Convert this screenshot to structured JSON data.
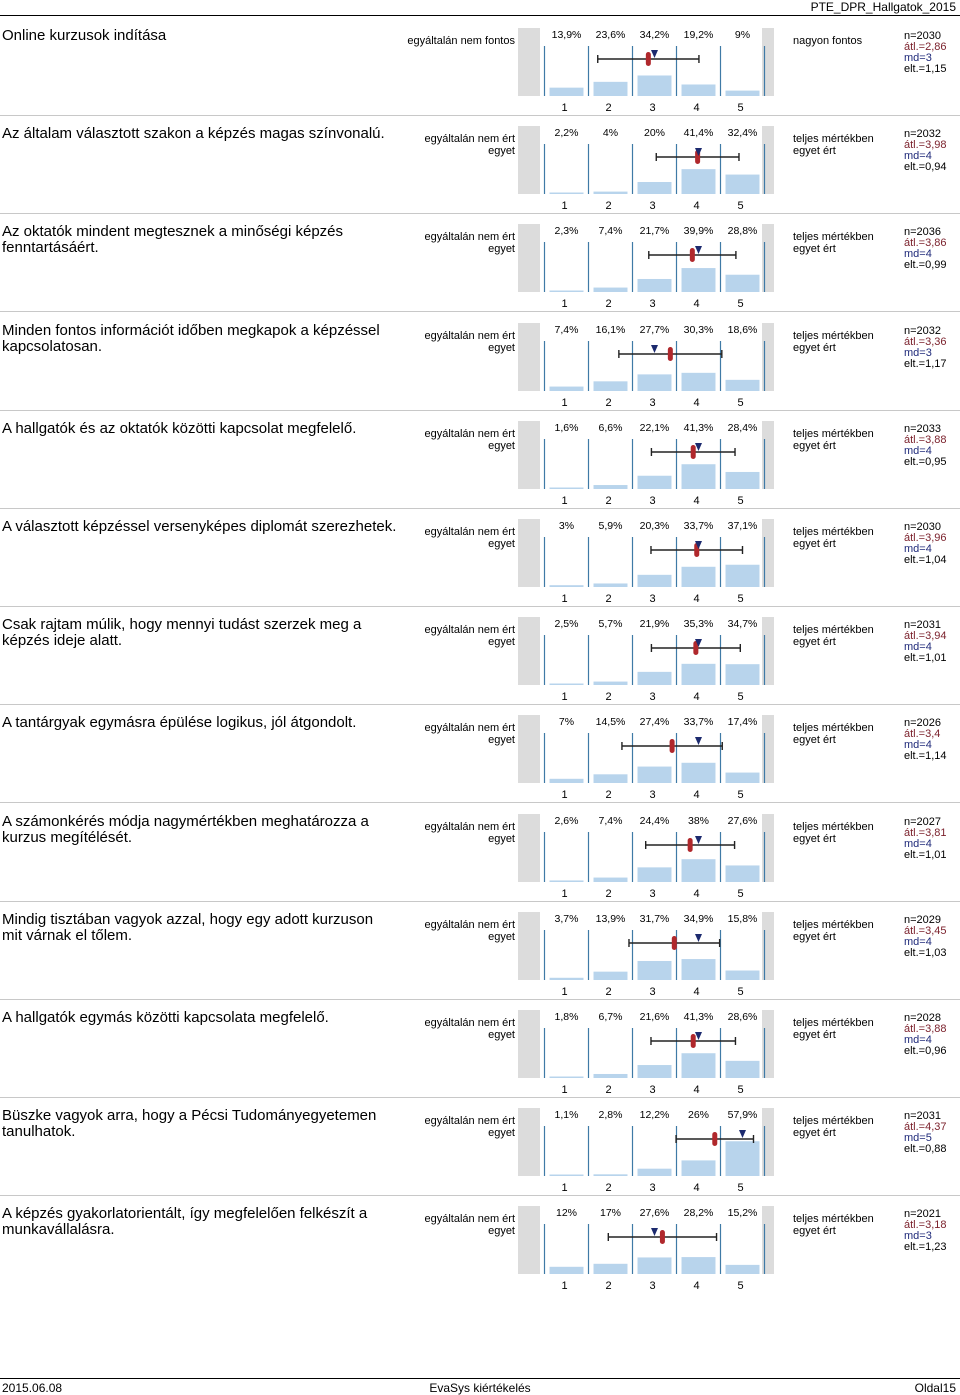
{
  "header": {
    "title": "PTE_DPR_Hallgatok_2015"
  },
  "footer": {
    "date": "2015.06.08",
    "center": "EvaSys kiértékelés",
    "page": "Oldal15"
  },
  "scale_labels": [
    "1",
    "2",
    "3",
    "4",
    "5"
  ],
  "colors": {
    "bar": "#b8d4ec",
    "mean": "#b0282c",
    "median": "#1c2a6e",
    "frame": "#dcdcdc",
    "gridline": "#3f7aa6"
  },
  "chart_data": [
    {
      "type": "bar",
      "question": "Online kurzusok indítása",
      "left_label": "egyáltalán nem fontos",
      "right_label": "nagyon fontos",
      "categories": [
        "1",
        "2",
        "3",
        "4",
        "5"
      ],
      "values": [
        13.9,
        23.6,
        34.2,
        19.2,
        9.0
      ],
      "value_labels": [
        "13,9%",
        "23,6%",
        "34,2%",
        "19,2%",
        "9%"
      ],
      "n": "n=2030",
      "mean": 2.86,
      "mean_label": "átl.=2,86",
      "median": 3,
      "median_label": "md=3",
      "sd": 1.15,
      "sd_label": "elt.=1,15"
    },
    {
      "type": "bar",
      "question": "Az általam választott szakon a képzés magas színvonalú.",
      "left_label": "egyáltalán nem ért egyet",
      "right_label": "teljes mértékben egyet ért",
      "categories": [
        "1",
        "2",
        "3",
        "4",
        "5"
      ],
      "values": [
        2.2,
        4.0,
        20.0,
        41.4,
        32.4
      ],
      "value_labels": [
        "2,2%",
        "4%",
        "20%",
        "41,4%",
        "32,4%"
      ],
      "n": "n=2032",
      "mean": 3.98,
      "mean_label": "átl.=3,98",
      "median": 4,
      "median_label": "md=4",
      "sd": 0.94,
      "sd_label": "elt.=0,94"
    },
    {
      "type": "bar",
      "question": "Az oktatók mindent megtesznek a minőségi képzés fenntartásáért.",
      "left_label": "egyáltalán nem ért egyet",
      "right_label": "teljes mértékben egyet ért",
      "categories": [
        "1",
        "2",
        "3",
        "4",
        "5"
      ],
      "values": [
        2.3,
        7.4,
        21.7,
        39.9,
        28.8
      ],
      "value_labels": [
        "2,3%",
        "7,4%",
        "21,7%",
        "39,9%",
        "28,8%"
      ],
      "n": "n=2036",
      "mean": 3.86,
      "mean_label": "átl.=3,86",
      "median": 4,
      "median_label": "md=4",
      "sd": 0.99,
      "sd_label": "elt.=0,99"
    },
    {
      "type": "bar",
      "question": "Minden fontos információt időben megkapok a képzéssel kapcsolatosan.",
      "left_label": "egyáltalán nem ért egyet",
      "right_label": "teljes mértékben egyet ért",
      "categories": [
        "1",
        "2",
        "3",
        "4",
        "5"
      ],
      "values": [
        7.4,
        16.1,
        27.7,
        30.3,
        18.6
      ],
      "value_labels": [
        "7,4%",
        "16,1%",
        "27,7%",
        "30,3%",
        "18,6%"
      ],
      "n": "n=2032",
      "mean": 3.36,
      "mean_label": "átl.=3,36",
      "median": 3,
      "median_label": "md=3",
      "sd": 1.17,
      "sd_label": "elt.=1,17"
    },
    {
      "type": "bar",
      "question": "A hallgatók és az oktatók közötti kapcsolat megfelelő.",
      "left_label": "egyáltalán nem ért egyet",
      "right_label": "teljes mértékben egyet ért",
      "categories": [
        "1",
        "2",
        "3",
        "4",
        "5"
      ],
      "values": [
        1.6,
        6.6,
        22.1,
        41.3,
        28.4
      ],
      "value_labels": [
        "1,6%",
        "6,6%",
        "22,1%",
        "41,3%",
        "28,4%"
      ],
      "n": "n=2033",
      "mean": 3.88,
      "mean_label": "átl.=3,88",
      "median": 4,
      "median_label": "md=4",
      "sd": 0.95,
      "sd_label": "elt.=0,95"
    },
    {
      "type": "bar",
      "question": "A választott képzéssel versenyképes diplomát szerezhetek.",
      "left_label": "egyáltalán nem ért egyet",
      "right_label": "teljes mértékben egyet ért",
      "categories": [
        "1",
        "2",
        "3",
        "4",
        "5"
      ],
      "values": [
        3.0,
        5.9,
        20.3,
        33.7,
        37.1
      ],
      "value_labels": [
        "3%",
        "5,9%",
        "20,3%",
        "33,7%",
        "37,1%"
      ],
      "n": "n=2030",
      "mean": 3.96,
      "mean_label": "átl.=3,96",
      "median": 4,
      "median_label": "md=4",
      "sd": 1.04,
      "sd_label": "elt.=1,04"
    },
    {
      "type": "bar",
      "question": "Csak rajtam múlik, hogy mennyi tudást szerzek meg a képzés ideje alatt.",
      "left_label": "egyáltalán nem ért egyet",
      "right_label": "teljes mértékben egyet ért",
      "categories": [
        "1",
        "2",
        "3",
        "4",
        "5"
      ],
      "values": [
        2.5,
        5.7,
        21.9,
        35.3,
        34.7
      ],
      "value_labels": [
        "2,5%",
        "5,7%",
        "21,9%",
        "35,3%",
        "34,7%"
      ],
      "n": "n=2031",
      "mean": 3.94,
      "mean_label": "átl.=3,94",
      "median": 4,
      "median_label": "md=4",
      "sd": 1.01,
      "sd_label": "elt.=1,01"
    },
    {
      "type": "bar",
      "question": "A tantárgyak egymásra épülése logikus, jól átgondolt.",
      "left_label": "egyáltalán nem ért egyet",
      "right_label": "teljes mértékben egyet ért",
      "categories": [
        "1",
        "2",
        "3",
        "4",
        "5"
      ],
      "values": [
        7.0,
        14.5,
        27.4,
        33.7,
        17.4
      ],
      "value_labels": [
        "7%",
        "14,5%",
        "27,4%",
        "33,7%",
        "17,4%"
      ],
      "n": "n=2026",
      "mean": 3.4,
      "mean_label": "átl.=3,4",
      "median": 4,
      "median_label": "md=4",
      "sd": 1.14,
      "sd_label": "elt.=1,14"
    },
    {
      "type": "bar",
      "question": "A számonkérés módja nagymértékben meghatározza a kurzus megítélését.",
      "left_label": "egyáltalán nem ért egyet",
      "right_label": "teljes mértékben egyet ért",
      "categories": [
        "1",
        "2",
        "3",
        "4",
        "5"
      ],
      "values": [
        2.6,
        7.4,
        24.4,
        38.0,
        27.6
      ],
      "value_labels": [
        "2,6%",
        "7,4%",
        "24,4%",
        "38%",
        "27,6%"
      ],
      "n": "n=2027",
      "mean": 3.81,
      "mean_label": "átl.=3,81",
      "median": 4,
      "median_label": "md=4",
      "sd": 1.01,
      "sd_label": "elt.=1,01"
    },
    {
      "type": "bar",
      "question": "Mindig tisztában vagyok azzal, hogy egy adott kurzuson mit várnak el tőlem.",
      "left_label": "egyáltalán nem ért egyet",
      "right_label": "teljes mértékben egyet ért",
      "categories": [
        "1",
        "2",
        "3",
        "4",
        "5"
      ],
      "values": [
        3.7,
        13.9,
        31.7,
        34.9,
        15.8
      ],
      "value_labels": [
        "3,7%",
        "13,9%",
        "31,7%",
        "34,9%",
        "15,8%"
      ],
      "n": "n=2029",
      "mean": 3.45,
      "mean_label": "átl.=3,45",
      "median": 4,
      "median_label": "md=4",
      "sd": 1.03,
      "sd_label": "elt.=1,03"
    },
    {
      "type": "bar",
      "question": "A hallgatók egymás közötti kapcsolata megfelelő.",
      "left_label": "egyáltalán nem ért egyet",
      "right_label": "teljes mértékben egyet ért",
      "categories": [
        "1",
        "2",
        "3",
        "4",
        "5"
      ],
      "values": [
        1.8,
        6.7,
        21.6,
        41.3,
        28.6
      ],
      "value_labels": [
        "1,8%",
        "6,7%",
        "21,6%",
        "41,3%",
        "28,6%"
      ],
      "n": "n=2028",
      "mean": 3.88,
      "mean_label": "átl.=3,88",
      "median": 4,
      "median_label": "md=4",
      "sd": 0.96,
      "sd_label": "elt.=0,96"
    },
    {
      "type": "bar",
      "question": "Büszke vagyok arra, hogy a Pécsi Tudományegyetemen tanulhatok.",
      "left_label": "egyáltalán nem ért egyet",
      "right_label": "teljes mértékben egyet ért",
      "categories": [
        "1",
        "2",
        "3",
        "4",
        "5"
      ],
      "values": [
        1.1,
        2.8,
        12.2,
        26.0,
        57.9
      ],
      "value_labels": [
        "1,1%",
        "2,8%",
        "12,2%",
        "26%",
        "57,9%"
      ],
      "n": "n=2031",
      "mean": 4.37,
      "mean_label": "átl.=4,37",
      "median": 5,
      "median_label": "md=5",
      "sd": 0.88,
      "sd_label": "elt.=0,88"
    },
    {
      "type": "bar",
      "question": "A képzés gyakorlatorientált, így megfelelően felkészít a munkavállalásra.",
      "left_label": "egyáltalán nem ért egyet",
      "right_label": "teljes mértékben egyet ért",
      "categories": [
        "1",
        "2",
        "3",
        "4",
        "5"
      ],
      "values": [
        12.0,
        17.0,
        27.6,
        28.2,
        15.2
      ],
      "value_labels": [
        "12%",
        "17%",
        "27,6%",
        "28,2%",
        "15,2%"
      ],
      "n": "n=2021",
      "mean": 3.18,
      "mean_label": "átl.=3,18",
      "median": 3,
      "median_label": "md=3",
      "sd": 1.23,
      "sd_label": "elt.=1,23"
    }
  ]
}
